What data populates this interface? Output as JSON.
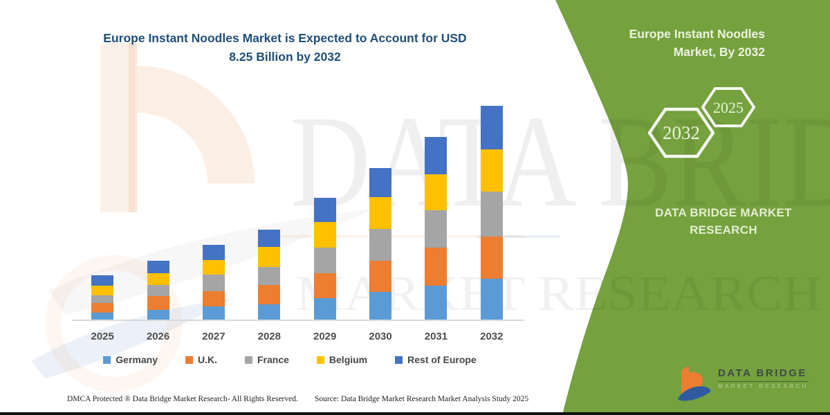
{
  "title": {
    "line1": "Europe Instant Noodles Market is Expected to Account for USD",
    "line2": "8.25 Billion by 2032",
    "color": "#1F4E79"
  },
  "chart_data": {
    "type": "bar",
    "subtype": "stacked",
    "title": "Europe Instant Noodles Market is Expected to Account for USD 8.25 Billion by 2032",
    "unit": "USD Billion",
    "categories": [
      "2025",
      "2026",
      "2027",
      "2028",
      "2029",
      "2030",
      "2031",
      "2032"
    ],
    "series": [
      {
        "name": "Germany",
        "color": "#5B9BD5",
        "values": [
          0.29,
          0.4,
          0.53,
          0.61,
          0.85,
          1.09,
          1.33,
          1.6
        ]
      },
      {
        "name": "U.K.",
        "color": "#ED7D31",
        "values": [
          0.37,
          0.53,
          0.59,
          0.75,
          0.96,
          1.2,
          1.46,
          1.62
        ]
      },
      {
        "name": "France",
        "color": "#A5A5A5",
        "values": [
          0.29,
          0.43,
          0.64,
          0.69,
          0.98,
          1.22,
          1.44,
          1.73
        ]
      },
      {
        "name": "Belgium",
        "color": "#FFC000",
        "values": [
          0.37,
          0.45,
          0.56,
          0.77,
          0.98,
          1.22,
          1.38,
          1.62
        ]
      },
      {
        "name": "Rest of Europe",
        "color": "#4472C4",
        "values": [
          0.4,
          0.48,
          0.59,
          0.67,
          0.93,
          1.12,
          1.44,
          1.68
        ]
      }
    ],
    "totals": [
      1.73,
      2.29,
      2.9,
      3.49,
      4.71,
      5.85,
      7.05,
      8.25
    ],
    "ylim": [
      0,
      8.25
    ],
    "gridlines": false,
    "axis_labels_visible": false,
    "legend_position": "bottom"
  },
  "watermark": {
    "brand": "DATA BRIDGE",
    "tagline": "MARKET RESEARCH"
  },
  "panel": {
    "color": "#75A13E",
    "title_line1": "Europe Instant Noodles",
    "title_line2": "Market, By 2032",
    "hexagons": [
      {
        "label": "2032"
      },
      {
        "label": "2025"
      }
    ],
    "org_line1": "DATA BRIDGE MARKET",
    "org_line2": "RESEARCH"
  },
  "logo": {
    "name": "DATA BRIDGE",
    "tagline": "MARKET RESEARCH"
  },
  "footer": {
    "dmca": "DMCA Protected ® Data Bridge Market Research-  All Rights Reserved.",
    "source": "Source: Data Bridge Market Research  Market Analysis Study 2025"
  }
}
